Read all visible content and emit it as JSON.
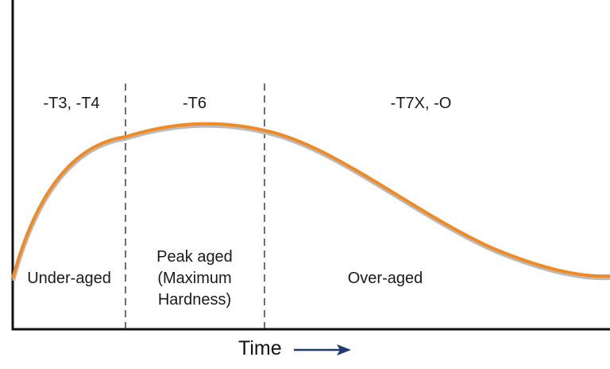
{
  "diagram": {
    "regions": [
      {
        "temper": "-T3, -T4",
        "state": "Under-aged"
      },
      {
        "temper": "-T6",
        "state_lines": [
          "Peak aged",
          "(Maximum",
          "Hardness)"
        ]
      },
      {
        "temper": "-T7X, -O",
        "state": "Over-aged"
      }
    ],
    "x_axis_label": "Time",
    "colors": {
      "curve": "#F08A24",
      "curve_shadow": "#BBBBBB",
      "arrow": "#1F3A6E",
      "axis": "#111111"
    }
  }
}
